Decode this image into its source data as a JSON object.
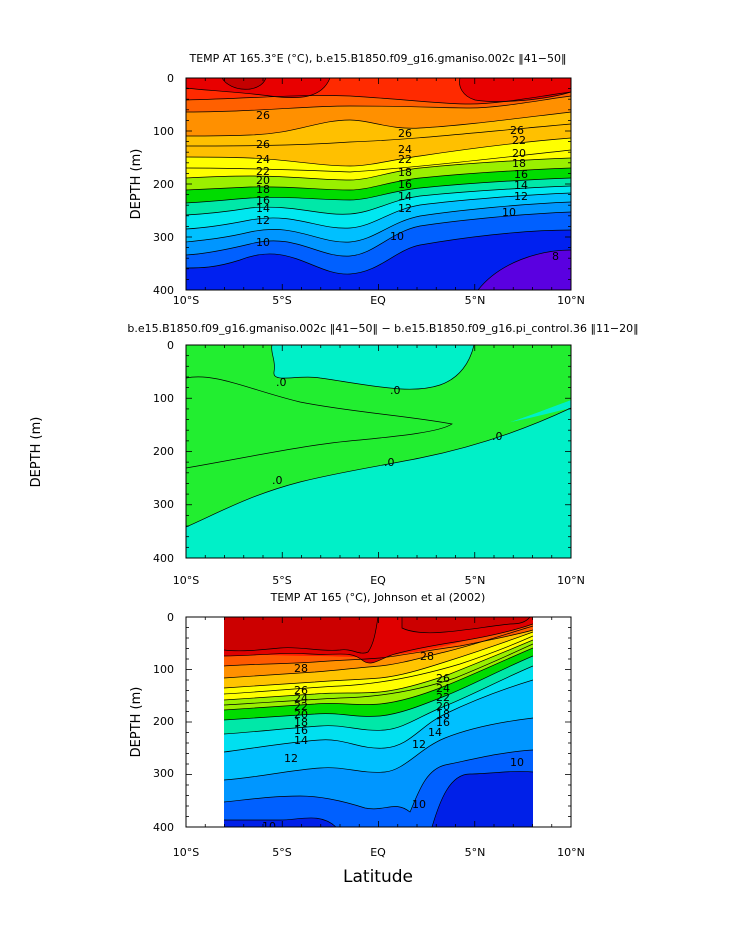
{
  "figure": {
    "xlabel": "Latitude"
  },
  "chart_data": [
    {
      "type": "heatmap",
      "title": "TEMP AT 165.3°E (°C), b.e15.B1850.f09_g16.gmaniso.002c ‖41−50‖",
      "ylabel": "DEPTH (m)",
      "xlabel": "",
      "x_ticks": [
        "10°S",
        "5°S",
        "EQ",
        "5°N",
        "10°N"
      ],
      "y_ticks": [
        "0",
        "100",
        "200",
        "300",
        "400"
      ],
      "xlim": [
        -10,
        10
      ],
      "ylim": [
        0,
        400
      ],
      "y_inverted": true,
      "contour_labels": [
        "26",
        "26",
        "26",
        "26",
        "24",
        "24",
        "22",
        "22",
        "22",
        "20",
        "20",
        "18",
        "18",
        "18",
        "16",
        "16",
        "16",
        "14",
        "14",
        "14",
        "12",
        "12",
        "12",
        "10",
        "10",
        "10",
        "8"
      ],
      "contour_levels": [
        30,
        28,
        26,
        24,
        22,
        20,
        18,
        16,
        14,
        12,
        10,
        8,
        6
      ],
      "colors": [
        "#e80000",
        "#ff2a00",
        "#ff6000",
        "#ff9000",
        "#ffc000",
        "#ffff00",
        "#9af000",
        "#00dc00",
        "#00e8a8",
        "#00e8f0",
        "#00c0ff",
        "#0096ff",
        "#0060ff",
        "#0020f0",
        "#5a00e0"
      ]
    },
    {
      "type": "heatmap",
      "title": "b.e15.B1850.f09_g16.gmaniso.002c ‖41−50‖ − b.e15.B1850.f09_g16.pi_control.36 ‖11−20‖",
      "ylabel": "DEPTH (m)",
      "xlabel": "",
      "x_ticks": [
        "10°S",
        "5°S",
        "EQ",
        "5°N",
        "10°N"
      ],
      "y_ticks": [
        "0",
        "100",
        "200",
        "300",
        "400"
      ],
      "xlim": [
        -10,
        10
      ],
      "ylim": [
        0,
        400
      ],
      "y_inverted": true,
      "contour_labels": [
        ".0",
        ".0",
        ".0",
        ".0",
        ".0"
      ],
      "colors": [
        "#00f0c8",
        "#22ee30"
      ]
    },
    {
      "type": "heatmap",
      "title": "TEMP AT 165 (°C), Johnson et al (2002)",
      "ylabel": "DEPTH (m)",
      "xlabel": "",
      "x_ticks": [
        "10°S",
        "5°S",
        "EQ",
        "5°N",
        "10°N"
      ],
      "y_ticks": [
        "0",
        "100",
        "200",
        "300",
        "400"
      ],
      "xlim": [
        -10,
        10
      ],
      "ylim": [
        0,
        400
      ],
      "y_inverted": true,
      "data_xlim": [
        -8,
        8
      ],
      "contour_labels": [
        "28",
        "28",
        "26",
        "26",
        "24",
        "24",
        "22",
        "22",
        "20",
        "20",
        "18",
        "18",
        "16",
        "16",
        "14",
        "14",
        "12",
        "12",
        "10",
        "10",
        "10"
      ],
      "colors": [
        "#e00000",
        "#ff1e00",
        "#ff5a00",
        "#ff9000",
        "#ffc400",
        "#ffff00",
        "#9af000",
        "#00dc00",
        "#00e8a8",
        "#00e0f0",
        "#00c0ff",
        "#0096ff",
        "#0060ff",
        "#0020e8"
      ]
    }
  ]
}
